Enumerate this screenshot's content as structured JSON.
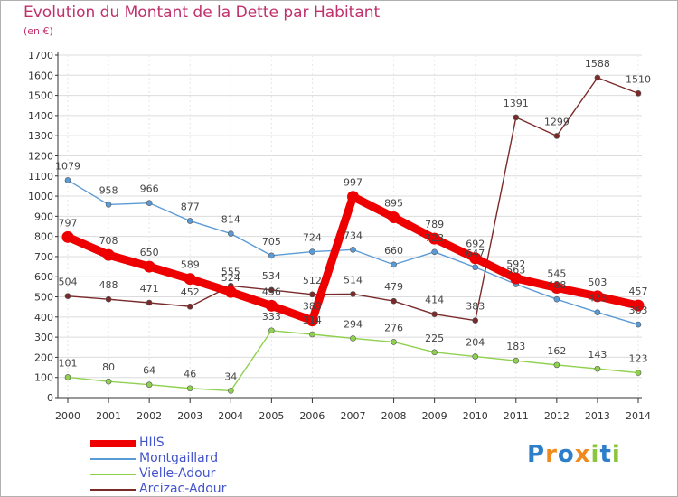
{
  "header": {
    "title": "Evolution du Montant de la Dette par Habitant",
    "subtitle": "(en €)"
  },
  "chart_data": {
    "type": "line",
    "title": "Evolution du Montant de la Dette par Habitant",
    "subtitle": "(en €)",
    "xlabel": "",
    "ylabel": "",
    "x": [
      2000,
      2001,
      2002,
      2003,
      2004,
      2005,
      2006,
      2007,
      2008,
      2009,
      2010,
      2011,
      2012,
      2013,
      2014
    ],
    "ylim": [
      0,
      1700
    ],
    "yticks": [
      0,
      100,
      200,
      300,
      400,
      500,
      600,
      700,
      800,
      900,
      1000,
      1100,
      1200,
      1300,
      1400,
      1500,
      1600,
      1700
    ],
    "grid": true,
    "legend_position": "bottom-left",
    "series": [
      {
        "name": "HIIS",
        "color": "#ee0000",
        "values": [
          797,
          708,
          650,
          589,
          524,
          456,
          383,
          997,
          895,
          789,
          692,
          592,
          545,
          503,
          457
        ]
      },
      {
        "name": "Montgaillard",
        "color": "#5b9bd5",
        "values": [
          1079,
          958,
          966,
          877,
          814,
          705,
          724,
          734,
          660,
          723,
          647,
          563,
          488,
          423,
          363
        ]
      },
      {
        "name": "Vielle-Adour",
        "color": "#8fd14f",
        "values": [
          101,
          80,
          64,
          46,
          34,
          333,
          314,
          294,
          276,
          225,
          204,
          183,
          162,
          143,
          123
        ]
      },
      {
        "name": "Arcizac-Adour",
        "color": "#7b2a2a",
        "values": [
          504,
          488,
          471,
          452,
          555,
          534,
          512,
          514,
          479,
          414,
          383,
          1391,
          1299,
          1588,
          1510
        ]
      }
    ]
  },
  "legend": {
    "items": [
      {
        "label": "HIIS",
        "color": "#ee0000"
      },
      {
        "label": "Montgaillard",
        "color": "#5b9bd5"
      },
      {
        "label": "Vielle-Adour",
        "color": "#8fd14f"
      },
      {
        "label": "Arcizac-Adour",
        "color": "#7b2a2a"
      }
    ]
  },
  "logo": {
    "letters": [
      "P",
      "r",
      "o",
      "x",
      "i",
      "t",
      "i"
    ],
    "colors": [
      "#2e7fc9",
      "#f08a1c",
      "#2e7fc9",
      "#f08a1c",
      "#8cc63f",
      "#2e7fc9",
      "#8cc63f"
    ]
  }
}
